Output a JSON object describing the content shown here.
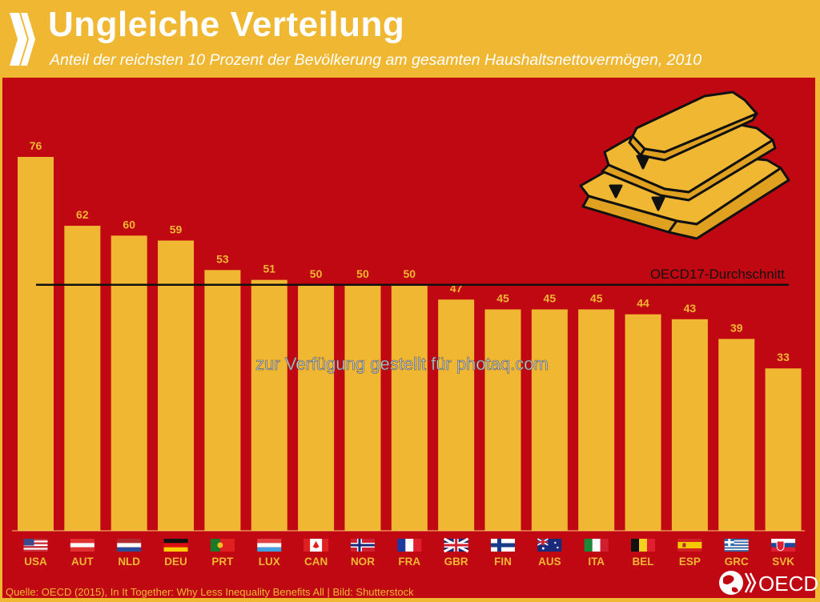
{
  "header": {
    "title": "Ungleiche Verteilung",
    "subtitle": "Anteil der reichsten 10 Prozent der Bevölkerung am gesamten Haushaltsnettovermögen, 2010"
  },
  "colors": {
    "background": "#c00812",
    "bar": "#f0b733",
    "header": "#f0b733",
    "average_line": "#111111"
  },
  "chart_data": {
    "type": "bar",
    "title": "Ungleiche Verteilung",
    "subtitle": "Anteil der reichsten 10 Prozent der Bevölkerung am gesamten Haushaltsnettovermögen, 2010",
    "xlabel": "",
    "ylabel": "",
    "ylim": [
      0,
      80
    ],
    "grid": false,
    "categories": [
      "USA",
      "AUT",
      "NLD",
      "DEU",
      "PRT",
      "LUX",
      "CAN",
      "NOR",
      "FRA",
      "GBR",
      "FIN",
      "AUS",
      "ITA",
      "BEL",
      "ESP",
      "GRC",
      "SVK"
    ],
    "values": [
      76,
      62,
      60,
      59,
      53,
      51,
      50,
      50,
      50,
      47,
      45,
      45,
      45,
      44,
      43,
      39,
      33
    ],
    "data_labels": [
      "76",
      "62",
      "60",
      "59",
      "53",
      "51",
      "50",
      "50",
      "50",
      "47",
      "45",
      "45",
      "45",
      "44",
      "43",
      "39",
      "33"
    ],
    "reference_line": {
      "label": "OECD17-Durchschnitt",
      "value": 50
    }
  },
  "flags": [
    "us-flag",
    "at-flag",
    "nl-flag",
    "de-flag",
    "pt-flag",
    "lu-flag",
    "ca-flag",
    "no-flag",
    "fr-flag",
    "gb-flag",
    "fi-flag",
    "au-flag",
    "it-flag",
    "be-flag",
    "es-flag",
    "gr-flag",
    "sk-flag"
  ],
  "illustration": "gold-bars-icon",
  "watermark": "zur Verfügung gestellt für photaq.com",
  "footer": {
    "source": "Quelle: OECD (2015), In It Together: Why Less Inequality Benefits All | Bild: Shutterstock",
    "logo_text": "OECD"
  }
}
